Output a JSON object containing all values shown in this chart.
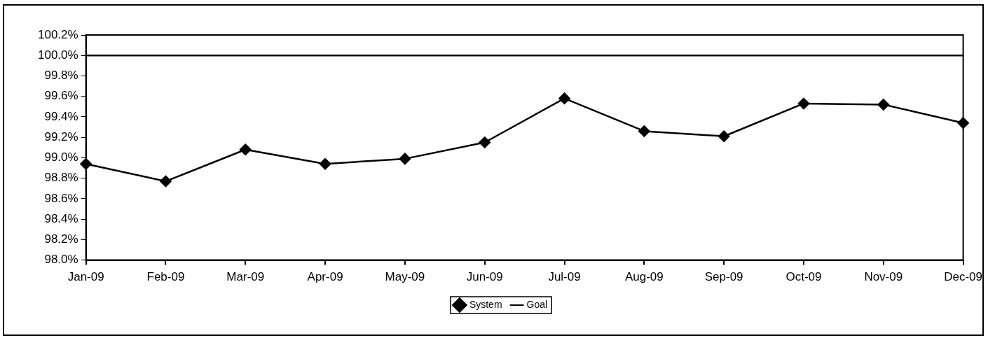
{
  "chart_data": {
    "type": "line",
    "categories": [
      "Jan-09",
      "Feb-09",
      "Mar-09",
      "Apr-09",
      "May-09",
      "Jun-09",
      "Jul-09",
      "Aug-09",
      "Sep-09",
      "Oct-09",
      "Nov-09",
      "Dec-09"
    ],
    "series": [
      {
        "name": "System",
        "color": "#000000",
        "marker": "diamond",
        "values": [
          98.94,
          98.77,
          99.08,
          98.94,
          98.99,
          99.15,
          99.58,
          99.26,
          99.21,
          99.53,
          99.52,
          99.34
        ]
      },
      {
        "name": "Goal",
        "color": "#000000",
        "marker": "none",
        "values": [
          100.0,
          100.0,
          100.0,
          100.0,
          100.0,
          100.0,
          100.0,
          100.0,
          100.0,
          100.0,
          100.0,
          100.0
        ]
      }
    ],
    "ylim": [
      98.0,
      100.2
    ],
    "yticks": [
      {
        "value": 98.0,
        "label": "98.0%"
      },
      {
        "value": 98.2,
        "label": "98.2%"
      },
      {
        "value": 98.4,
        "label": "98.4%"
      },
      {
        "value": 98.6,
        "label": "98.6%"
      },
      {
        "value": 98.8,
        "label": "98.8%"
      },
      {
        "value": 99.0,
        "label": "99.0%"
      },
      {
        "value": 99.2,
        "label": "99.2%"
      },
      {
        "value": 99.4,
        "label": "99.4%"
      },
      {
        "value": 99.6,
        "label": "99.6%"
      },
      {
        "value": 99.8,
        "label": "99.8%"
      },
      {
        "value": 100.0,
        "label": "100.0%"
      },
      {
        "value": 100.2,
        "label": "100.2%"
      }
    ],
    "grid": false,
    "legend": "bottom",
    "line_style": "solid"
  }
}
